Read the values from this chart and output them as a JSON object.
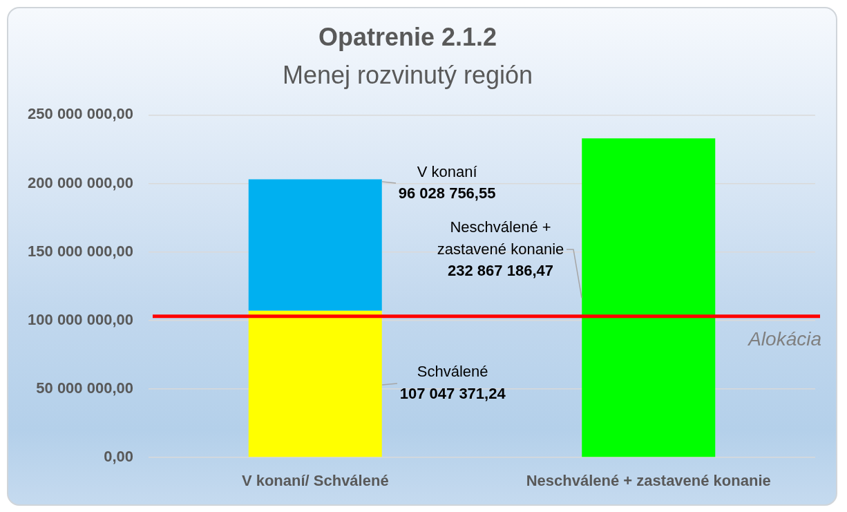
{
  "chart_data": {
    "type": "bar",
    "title": "Opatrenie 2.1.2",
    "subtitle": "Menej rozvinutý región",
    "categories": [
      "V konaní/ Schválené",
      "Neschválené + zastavené konanie"
    ],
    "stacked": true,
    "series": [
      {
        "name": "Schválené",
        "color": "#ffff00",
        "values": [
          107047371.24,
          null
        ],
        "value_labels": [
          "107 047 371,24",
          null
        ]
      },
      {
        "name": "V konaní",
        "color": "#00b0f0",
        "values": [
          96028756.55,
          null
        ],
        "value_labels": [
          "96 028 756,55",
          null
        ]
      },
      {
        "name": "Neschválené + zastavené konanie",
        "color": "#00ff00",
        "values": [
          null,
          232867186.47
        ],
        "value_labels": [
          null,
          "232 867 186,47"
        ]
      }
    ],
    "ylim": [
      0,
      250000000
    ],
    "yticks": [
      {
        "value": 0,
        "label": "0,00"
      },
      {
        "value": 50000000,
        "label": "50 000 000,00"
      },
      {
        "value": 100000000,
        "label": "100 000 000,00"
      },
      {
        "value": 150000000,
        "label": "150 000 000,00"
      },
      {
        "value": 200000000,
        "label": "200 000 000,00"
      },
      {
        "value": 250000000,
        "label": "250 000 000,00"
      }
    ],
    "grid": "y",
    "ref_lines": [
      {
        "axis": "y",
        "value": 103000000,
        "label": "Alokácia",
        "color": "#ff0000"
      }
    ]
  }
}
